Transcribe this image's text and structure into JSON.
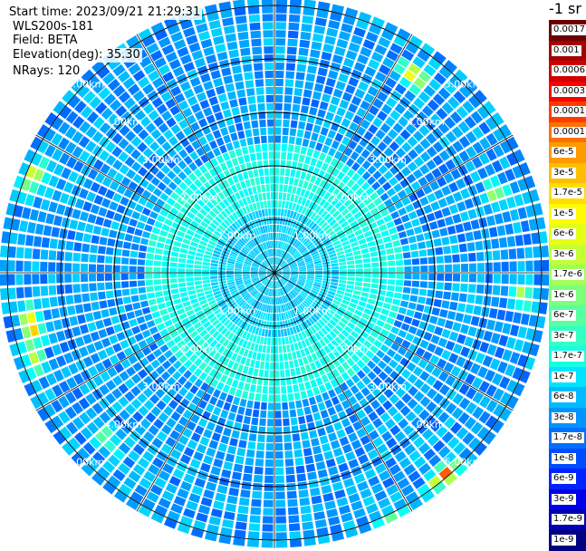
{
  "header": {
    "start_time": "Start time: 2023/09/21 21:29:31",
    "instrument": "WLS200s-181",
    "field": "Field: BETA",
    "elevation": "Elevation(deg): 35.30",
    "nrays": "NRays: 120"
  },
  "chart_data": {
    "type": "heatmap",
    "projection": "polar-ppi",
    "range_rings_km": [
      1,
      2,
      3,
      4,
      5
    ],
    "range_ring_labels": [
      "1.00km",
      "2.00km",
      "3.00km",
      "4.00km",
      "5.00km"
    ],
    "spokes_deg": [
      0,
      30,
      60,
      90,
      120,
      150,
      180,
      210,
      240,
      270,
      300,
      330
    ],
    "colorbar": {
      "unit": "-1 sr",
      "ticks": [
        "0.0017",
        "0.001",
        "0.0006",
        "0.0003",
        "0.00017",
        "0.0001",
        "6e-5",
        "3e-5",
        "1.7e-5",
        "1e-5",
        "6e-6",
        "3e-6",
        "1.7e-6",
        "1e-6",
        "6e-7",
        "3e-7",
        "1.7e-7",
        "1e-7",
        "6e-8",
        "3e-8",
        "1.7e-8",
        "1e-8",
        "6e-9",
        "3e-9",
        "1.7e-9",
        "1e-9"
      ],
      "colors": [
        "#6b0000",
        "#a50000",
        "#d10000",
        "#ff0000",
        "#ff3c00",
        "#ff7000",
        "#ff9a00",
        "#ffbe00",
        "#ffde00",
        "#fffb00",
        "#e4ff14",
        "#c4ff34",
        "#a0ff58",
        "#7cff7c",
        "#58ffa0",
        "#34ffc4",
        "#14ffe4",
        "#00e4ff",
        "#00bcff",
        "#0094ff",
        "#0070ff",
        "#004cff",
        "#0024ff",
        "#0000e8",
        "#0000b4",
        "#000080"
      ]
    },
    "hotspots": [
      {
        "azimuth_deg": 35,
        "range_km": 4.5,
        "intensity": 0.8
      },
      {
        "azimuth_deg": 70,
        "range_km": 4.4,
        "intensity": 0.55
      },
      {
        "azimuth_deg": 95,
        "range_km": 4.65,
        "intensity": 0.5
      },
      {
        "azimuth_deg": 140,
        "range_km": 4.95,
        "intensity": 1.0
      },
      {
        "azimuth_deg": 155,
        "range_km": 5.2,
        "intensity": 0.7
      },
      {
        "azimuth_deg": 250,
        "range_km": 4.75,
        "intensity": 0.55
      },
      {
        "azimuth_deg": 292,
        "range_km": 4.85,
        "intensity": 0.65
      },
      {
        "azimuth_deg": 258,
        "range_km": 4.65,
        "intensity": 0.95
      },
      {
        "azimuth_deg": 225,
        "range_km": 4.4,
        "intensity": 0.4
      },
      {
        "azimuth_deg": 330,
        "range_km": 5.3,
        "intensity": 0.55
      }
    ]
  }
}
